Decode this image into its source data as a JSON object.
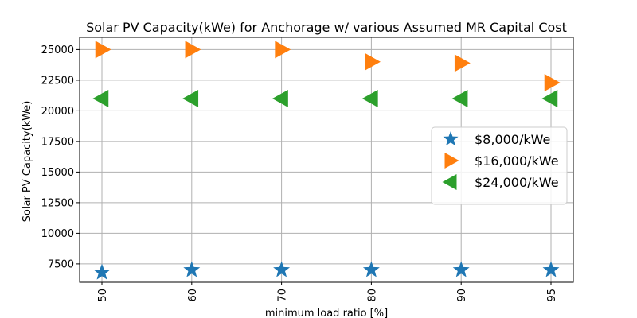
{
  "chart_data": {
    "type": "scatter",
    "title": "Solar PV Capacity(kWe) for Anchorage w/ various Assumed MR Capital Cost",
    "xlabel": "minimum load ratio [%]",
    "ylabel": "Solar PV Capacity(kWe)",
    "categories": [
      "50",
      "60",
      "70",
      "80",
      "90",
      "95"
    ],
    "yticks": [
      7500,
      10000,
      12500,
      15000,
      17500,
      20000,
      22500,
      25000
    ],
    "ylim": [
      6000,
      26000
    ],
    "grid": true,
    "legend_position": "center-right",
    "series": [
      {
        "name": "$8,000/kWe",
        "marker": "star",
        "color": "#1f77b4",
        "values": [
          6800,
          7000,
          7000,
          7000,
          7000,
          7000
        ]
      },
      {
        "name": "$16,000/kWe",
        "marker": "triangle-right",
        "color": "#ff7f0e",
        "values": [
          25000,
          25000,
          25000,
          24000,
          23900,
          22300
        ]
      },
      {
        "name": "$24,000/kWe",
        "marker": "triangle-left",
        "color": "#2ca02c",
        "values": [
          21000,
          21000,
          21000,
          21000,
          21000,
          21000
        ]
      }
    ]
  }
}
